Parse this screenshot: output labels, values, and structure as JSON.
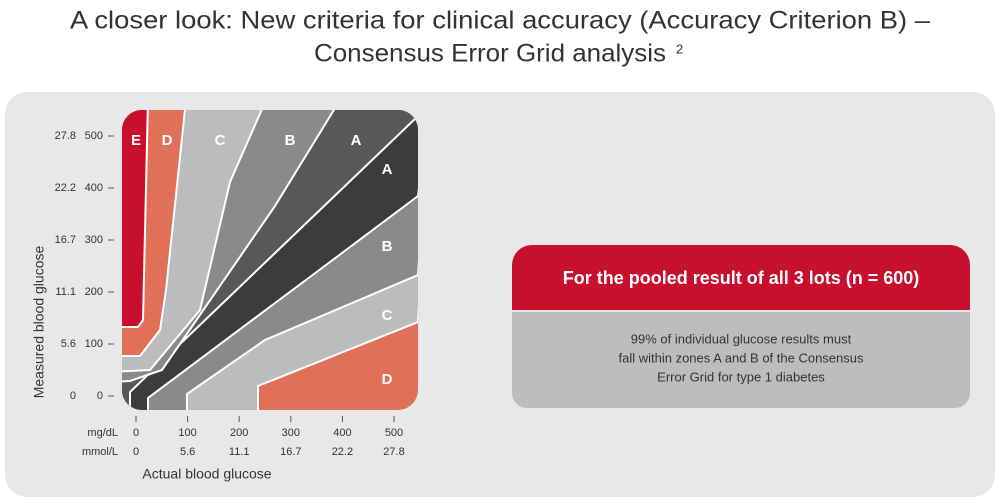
{
  "title": {
    "line1": "A closer look: New criteria for clinical accuracy (Accuracy Criterion B) –",
    "line2": "Consensus Error Grid analysis",
    "footnote": "2"
  },
  "grid": {
    "y_axis_label": "Measured blood glucose",
    "x_axis_label": "Actual blood glucose",
    "x_unit_labels": [
      "mg/dL",
      "mmol/L"
    ],
    "ticks_mgdl": [
      0,
      100,
      200,
      300,
      400,
      500
    ],
    "ticks_mmol": [
      0,
      5.6,
      11.1,
      16.7,
      22.2,
      27.8
    ],
    "zone_labels": [
      "E",
      "D",
      "C",
      "B",
      "A",
      "A",
      "B",
      "C",
      "D"
    ]
  },
  "callout": {
    "header": "For the pooled result of all 3 lots (n = 600)",
    "body": [
      "99% of individual glucose results must",
      "fall within zones A and B of the Consensus",
      "Error Grid for type 1 diabetes"
    ]
  }
}
